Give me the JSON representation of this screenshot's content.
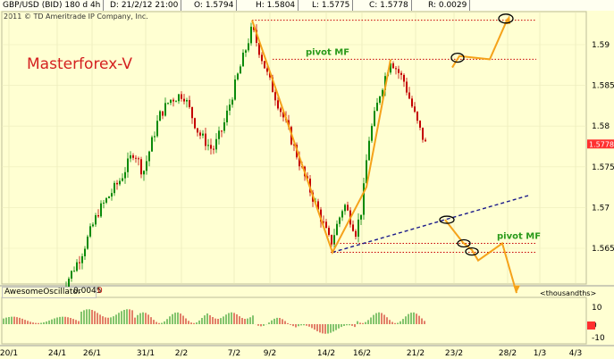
{
  "header": {
    "symbol": "GBP/USD (BID) 180 d 4h",
    "date": "D: 21/2/12 21:00",
    "open": "O: 1.5794",
    "high": "H: 1.5804",
    "low": "L: 1.5775",
    "close": "C: 1.5778",
    "range": "R: 0.0029",
    "copyright": "2011 © TD Ameritrade IP Company, Inc."
  },
  "annotations": {
    "brand": "Masterforex-V",
    "pivot_upper": "pivot MF",
    "pivot_lower": "pivot MF"
  },
  "colors": {
    "background": "#ffffd2",
    "candle_up": "#0a8a0a",
    "candle_down": "#c40000",
    "wave_line": "#f5a21a",
    "pivot_text": "#2a9a1a",
    "brand_text": "#d42020",
    "trendline": "#1a1a8a",
    "price_tag": "#ff3030"
  },
  "oscillator": {
    "name": "AwesomeOscillator",
    "value": "0.0045",
    "extra": "0",
    "unit_label": "<thousandths>"
  },
  "chart_data": {
    "type": "candlestick",
    "symbol": "GBP/USD",
    "y_ticks": [
      "1.59",
      "1.585",
      "1.58",
      "1.575",
      "1.57",
      "1.565"
    ],
    "ylim": [
      1.5605,
      1.5945
    ],
    "x_ticks": [
      "20/1",
      "24/1",
      "26/1",
      "31/1",
      "2/2",
      "7/2",
      "9/2",
      "14/2",
      "16/2",
      "21/2",
      "23/2",
      "28/2",
      "1/3",
      "4/3"
    ],
    "last_price": "1.5778",
    "pivot_levels": [
      1.5882,
      1.5656,
      1.5645
    ],
    "top_level": 1.593,
    "wave_points": [
      {
        "date": "7/2",
        "price": 1.593
      },
      {
        "date": "14/2",
        "price": 1.5645
      },
      {
        "date": "16/2",
        "price": 1.5725
      },
      {
        "date": "21/2",
        "price": 1.5882
      }
    ],
    "projection_up": [
      1.5872,
      1.5886,
      1.5882,
      1.5932
    ],
    "projection_down": [
      1.5685,
      1.5657,
      1.5648,
      1.5635,
      1.5656,
      1.5595
    ],
    "trendline": [
      {
        "date": "14/2",
        "price": 1.5645
      },
      {
        "date": "1/3",
        "price": 1.5715
      }
    ],
    "oscillator_ticks": [
      "10",
      "0",
      "-10"
    ]
  }
}
